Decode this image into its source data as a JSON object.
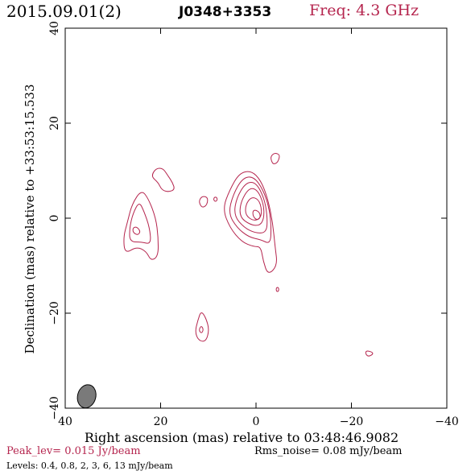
{
  "header": {
    "date": "2015.09.01(2)",
    "source": "J0348+3353",
    "freq": "Freq: 4.3 GHz"
  },
  "chart_data": {
    "type": "contour",
    "xlabel": "Right ascension (mas) relative to 03:48:46.9082",
    "ylabel": "Declination (mas) relative to +33:53:15.533",
    "xlim": [
      40,
      -40
    ],
    "ylim": [
      -40,
      40
    ],
    "xticks": [
      "40",
      "20",
      "0",
      "−20",
      "−40"
    ],
    "yticks": [
      "−40",
      "−20",
      "0",
      "20",
      "40"
    ],
    "xtick_values": [
      40,
      20,
      0,
      -20,
      -40
    ],
    "ytick_values": [
      -40,
      -20,
      0,
      20,
      40
    ],
    "contour_levels_mJy": [
      0.4,
      0.8,
      2,
      3,
      6,
      13
    ],
    "peak_level_Jy_per_beam": 0.015,
    "rms_noise_mJy_per_beam": 0.08,
    "beam": {
      "x": 35.5,
      "y": -37.5,
      "major_mas": 4.2,
      "minor_mas": 2.0,
      "pa_deg": 15
    },
    "components": [
      {
        "name": "core",
        "x": -0.5,
        "y": 0.5,
        "levels": 6
      },
      {
        "name": "west-knot",
        "x": 24.5,
        "y": -2.5,
        "levels": 3
      },
      {
        "name": "north-blob",
        "x": 20,
        "y": 8.5,
        "levels": 1
      },
      {
        "name": "south-blob",
        "x": 11.5,
        "y": -23.5,
        "levels": 2
      },
      {
        "name": "east-knot",
        "x": -4,
        "y": 12.5,
        "levels": 1
      },
      {
        "name": "small-1",
        "x": 11,
        "y": 3.5,
        "levels": 1
      },
      {
        "name": "small-2",
        "x": 8.5,
        "y": 4,
        "levels": 1
      },
      {
        "name": "small-3",
        "x": -4.5,
        "y": -15,
        "levels": 1
      },
      {
        "name": "small-4",
        "x": -24,
        "y": -28.5,
        "levels": 1
      }
    ],
    "colors": {
      "contour": "#b5254e",
      "beam_fill": "#7a7a7a",
      "axis": "#000000"
    }
  },
  "footer": {
    "peak": "Peak_lev=  0.015 Jy/beam",
    "rms": "Rms_noise= 0.08 mJy/beam",
    "levels": "Levels: 0.4, 0.8,   2,   3,   6,  13 mJy/beam"
  }
}
